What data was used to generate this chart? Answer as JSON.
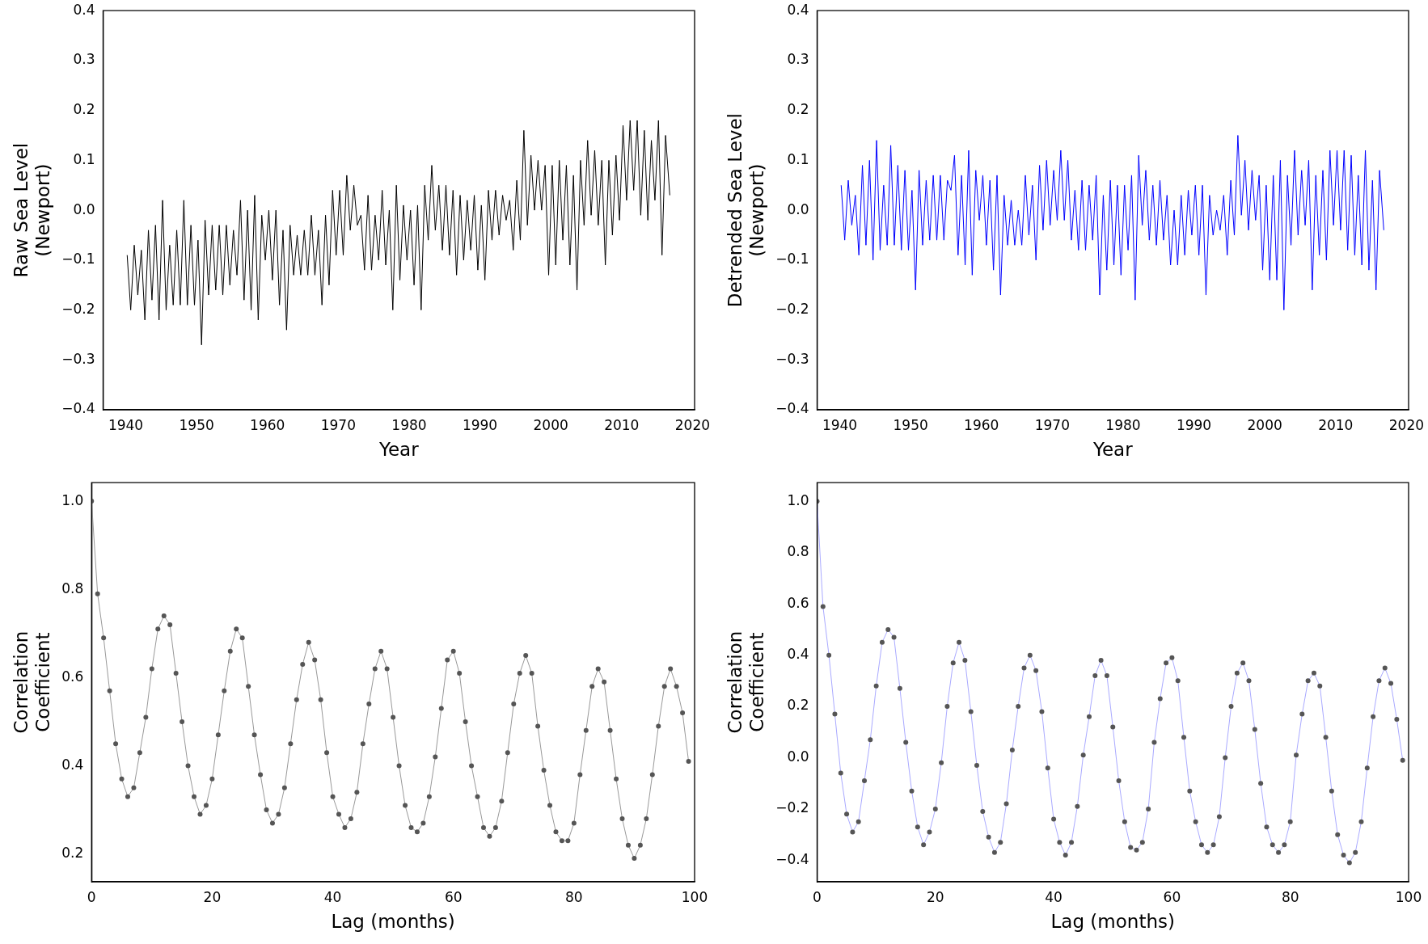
{
  "chart_data": [
    {
      "type": "line",
      "xlabel": "Year",
      "ylabel": "Raw Sea Level\n(Newport)",
      "color": "#000000",
      "marker": "none",
      "xlim": [
        1936.8,
        2020.3
      ],
      "xticks": [
        1940,
        1950,
        1960,
        1970,
        1980,
        1990,
        2000,
        2010,
        2020
      ],
      "ylim": [
        -0.4,
        0.4
      ],
      "yticks": [
        {
          "value": -0.4,
          "label": "−0.4"
        },
        {
          "value": -0.3,
          "label": "−0.3"
        },
        {
          "value": -0.2,
          "label": "−0.2"
        },
        {
          "value": -0.1,
          "label": "−0.1"
        },
        {
          "value": 0,
          "label": "0.0"
        },
        0.1,
        0.2,
        0.3,
        0.4
      ],
      "x": [
        1940.2,
        1940.7,
        1941.2,
        1941.7,
        1942.2,
        1942.7,
        1943.2,
        1943.7,
        1944.2,
        1944.7,
        1945.2,
        1945.7,
        1946.2,
        1946.7,
        1947.2,
        1947.7,
        1948.2,
        1948.7,
        1949.2,
        1949.7,
        1950.2,
        1950.7,
        1951.2,
        1951.7,
        1952.2,
        1952.7,
        1953.2,
        1953.7,
        1954.2,
        1954.7,
        1955.2,
        1955.7,
        1956.2,
        1956.7,
        1957.2,
        1957.7,
        1958.2,
        1958.7,
        1959.2,
        1959.7,
        1960.2,
        1960.7,
        1961.2,
        1961.7,
        1962.2,
        1962.7,
        1963.2,
        1963.7,
        1964.2,
        1964.7,
        1965.2,
        1965.7,
        1966.2,
        1966.7,
        1967.2,
        1967.7,
        1968.2,
        1968.7,
        1969.2,
        1969.7,
        1970.2,
        1970.7,
        1971.2,
        1971.7,
        1972.2,
        1972.7,
        1973.2,
        1973.7,
        1974.2,
        1974.7,
        1975.2,
        1975.7,
        1976.2,
        1976.7,
        1977.2,
        1977.7,
        1978.2,
        1978.7,
        1979.2,
        1979.7,
        1980.2,
        1980.7,
        1981.2,
        1981.7,
        1982.2,
        1982.7,
        1983.2,
        1983.7,
        1984.2,
        1984.7,
        1985.2,
        1985.7,
        1986.2,
        1986.7,
        1987.2,
        1987.7,
        1988.2,
        1988.7,
        1989.2,
        1989.7,
        1990.2,
        1990.7,
        1991.2,
        1991.7,
        1992.2,
        1992.7,
        1993.2,
        1993.7,
        1994.2,
        1994.7,
        1995.2,
        1995.7,
        1996.2,
        1996.7,
        1997.2,
        1997.7,
        1998.2,
        1998.7,
        1999.2,
        1999.7,
        2000.2,
        2000.7,
        2001.2,
        2001.7,
        2002.2,
        2002.7,
        2003.2,
        2003.7,
        2004.2,
        2004.7,
        2005.2,
        2005.7,
        2006.2,
        2006.7,
        2007.2,
        2007.7,
        2008.2,
        2008.7,
        2009.2,
        2009.7,
        2010.2,
        2010.7,
        2011.2,
        2011.7,
        2012.2,
        2012.7,
        2013.2,
        2013.7,
        2014.2,
        2014.7,
        2015.2,
        2015.7,
        2016.2,
        2016.8
      ],
      "values": [
        -0.09,
        -0.2,
        -0.07,
        -0.17,
        -0.08,
        -0.22,
        -0.04,
        -0.18,
        -0.03,
        -0.22,
        0.02,
        -0.2,
        -0.07,
        -0.19,
        -0.04,
        -0.19,
        0.02,
        -0.19,
        -0.03,
        -0.19,
        -0.06,
        -0.27,
        -0.02,
        -0.17,
        -0.03,
        -0.16,
        -0.03,
        -0.17,
        -0.03,
        -0.15,
        -0.04,
        -0.13,
        0.02,
        -0.18,
        0.0,
        -0.2,
        0.03,
        -0.22,
        -0.01,
        -0.1,
        0.0,
        -0.14,
        0.0,
        -0.19,
        -0.04,
        -0.24,
        -0.03,
        -0.13,
        -0.05,
        -0.13,
        -0.04,
        -0.13,
        -0.01,
        -0.13,
        -0.04,
        -0.19,
        -0.01,
        -0.15,
        0.04,
        -0.09,
        0.04,
        -0.09,
        0.07,
        -0.04,
        0.05,
        -0.03,
        -0.01,
        -0.12,
        0.03,
        -0.12,
        -0.01,
        -0.1,
        0.04,
        -0.11,
        0.0,
        -0.2,
        0.05,
        -0.14,
        0.01,
        -0.1,
        0.0,
        -0.15,
        0.01,
        -0.2,
        0.05,
        -0.06,
        0.09,
        -0.04,
        0.05,
        -0.08,
        0.05,
        -0.09,
        0.04,
        -0.13,
        0.03,
        -0.1,
        0.02,
        -0.08,
        0.03,
        -0.12,
        0.01,
        -0.14,
        0.04,
        -0.06,
        0.04,
        -0.05,
        0.03,
        -0.02,
        0.02,
        -0.08,
        0.06,
        -0.06,
        0.16,
        -0.03,
        0.11,
        0.0,
        0.1,
        0.0,
        0.09,
        -0.13,
        0.09,
        -0.11,
        0.1,
        -0.06,
        0.09,
        -0.11,
        0.07,
        -0.16,
        0.1,
        -0.03,
        0.14,
        -0.01,
        0.12,
        -0.03,
        0.1,
        -0.11,
        0.1,
        -0.05,
        0.11,
        -0.02,
        0.17,
        0.02,
        0.18,
        0.04,
        0.18,
        -0.01,
        0.16,
        -0.02,
        0.14,
        0.02,
        0.18,
        -0.09,
        0.15,
        0.03
      ]
    },
    {
      "type": "line",
      "xlabel": "Year",
      "ylabel": "Detrended Sea Level\n(Newport)",
      "color": "#0000ff",
      "marker": "none",
      "xlim": [
        1936.8,
        2020.3
      ],
      "xticks": [
        1940,
        1950,
        1960,
        1970,
        1980,
        1990,
        2000,
        2010,
        2020
      ],
      "ylim": [
        -0.4,
        0.4
      ],
      "yticks": [
        {
          "value": -0.4,
          "label": "−0.4"
        },
        {
          "value": -0.3,
          "label": "−0.3"
        },
        {
          "value": -0.2,
          "label": "−0.2"
        },
        {
          "value": -0.1,
          "label": "−0.1"
        },
        {
          "value": 0,
          "label": "0.0"
        },
        0.1,
        0.2,
        0.3,
        0.4
      ],
      "x": [
        1940.2,
        1940.7,
        1941.2,
        1941.7,
        1942.2,
        1942.7,
        1943.2,
        1943.7,
        1944.2,
        1944.7,
        1945.2,
        1945.7,
        1946.2,
        1946.7,
        1947.2,
        1947.7,
        1948.2,
        1948.7,
        1949.2,
        1949.7,
        1950.2,
        1950.7,
        1951.2,
        1951.7,
        1952.2,
        1952.7,
        1953.2,
        1953.7,
        1954.2,
        1954.7,
        1955.2,
        1955.7,
        1956.2,
        1956.7,
        1957.2,
        1957.7,
        1958.2,
        1958.7,
        1959.2,
        1959.7,
        1960.2,
        1960.7,
        1961.2,
        1961.7,
        1962.2,
        1962.7,
        1963.2,
        1963.7,
        1964.2,
        1964.7,
        1965.2,
        1965.7,
        1966.2,
        1966.7,
        1967.2,
        1967.7,
        1968.2,
        1968.7,
        1969.2,
        1969.7,
        1970.2,
        1970.7,
        1971.2,
        1971.7,
        1972.2,
        1972.7,
        1973.2,
        1973.7,
        1974.2,
        1974.7,
        1975.2,
        1975.7,
        1976.2,
        1976.7,
        1977.2,
        1977.7,
        1978.2,
        1978.7,
        1979.2,
        1979.7,
        1980.2,
        1980.7,
        1981.2,
        1981.7,
        1982.2,
        1982.7,
        1983.2,
        1983.7,
        1984.2,
        1984.7,
        1985.2,
        1985.7,
        1986.2,
        1986.7,
        1987.2,
        1987.7,
        1988.2,
        1988.7,
        1989.2,
        1989.7,
        1990.2,
        1990.7,
        1991.2,
        1991.7,
        1992.2,
        1992.7,
        1993.2,
        1993.7,
        1994.2,
        1994.7,
        1995.2,
        1995.7,
        1996.2,
        1996.7,
        1997.2,
        1997.7,
        1998.2,
        1998.7,
        1999.2,
        1999.7,
        2000.2,
        2000.7,
        2001.2,
        2001.7,
        2002.2,
        2002.7,
        2003.2,
        2003.7,
        2004.2,
        2004.7,
        2005.2,
        2005.7,
        2006.2,
        2006.7,
        2007.2,
        2007.7,
        2008.2,
        2008.7,
        2009.2,
        2009.7,
        2010.2,
        2010.7,
        2011.2,
        2011.7,
        2012.2,
        2012.7,
        2013.2,
        2013.7,
        2014.2,
        2014.7,
        2015.2,
        2015.7,
        2016.2,
        2016.8
      ],
      "values": [
        0.05,
        -0.06,
        0.06,
        -0.03,
        0.03,
        -0.09,
        0.09,
        -0.07,
        0.1,
        -0.1,
        0.14,
        -0.08,
        0.05,
        -0.07,
        0.13,
        -0.07,
        0.09,
        -0.08,
        0.08,
        -0.08,
        0.04,
        -0.16,
        0.08,
        -0.07,
        0.06,
        -0.06,
        0.07,
        -0.06,
        0.07,
        -0.06,
        0.06,
        0.04,
        0.11,
        -0.09,
        0.07,
        -0.11,
        0.12,
        -0.13,
        0.08,
        -0.02,
        0.07,
        -0.07,
        0.06,
        -0.12,
        0.07,
        -0.17,
        0.03,
        -0.07,
        0.02,
        -0.07,
        0.0,
        -0.07,
        0.07,
        -0.05,
        0.05,
        -0.1,
        0.09,
        -0.04,
        0.1,
        -0.03,
        0.08,
        -0.02,
        0.12,
        -0.02,
        0.1,
        -0.06,
        0.04,
        -0.08,
        0.06,
        -0.08,
        0.05,
        -0.06,
        0.07,
        -0.17,
        0.03,
        -0.12,
        0.06,
        -0.11,
        0.05,
        -0.13,
        0.05,
        -0.08,
        0.07,
        -0.18,
        0.11,
        -0.03,
        0.08,
        -0.06,
        0.05,
        -0.07,
        0.06,
        -0.06,
        0.03,
        -0.11,
        0.0,
        -0.11,
        0.03,
        -0.09,
        0.04,
        -0.05,
        0.05,
        -0.09,
        0.05,
        -0.17,
        0.03,
        -0.05,
        0.0,
        -0.04,
        0.03,
        -0.09,
        0.06,
        -0.05,
        0.15,
        -0.01,
        0.1,
        -0.04,
        0.08,
        -0.02,
        0.07,
        -0.12,
        0.05,
        -0.14,
        0.07,
        -0.14,
        0.1,
        -0.2,
        0.07,
        -0.07,
        0.12,
        -0.05,
        0.08,
        -0.03,
        0.1,
        -0.16,
        0.07,
        -0.09,
        0.08,
        -0.1,
        0.12,
        -0.03,
        0.12,
        -0.04,
        0.12,
        -0.08,
        0.11,
        -0.09,
        0.07,
        -0.11,
        0.12,
        -0.12,
        0.06,
        -0.16,
        0.08,
        -0.04
      ]
    },
    {
      "type": "line",
      "xlabel": "Lag (months)",
      "ylabel": "Correlation\nCoefficient",
      "color": "#999999",
      "marker": "circle",
      "xlim": [
        0,
        100
      ],
      "xticks": [
        0,
        20,
        40,
        60,
        80,
        100
      ],
      "ylim": [
        0.137,
        1.042
      ],
      "yticks": [
        0.2,
        0.4,
        0.6,
        0.8,
        {
          "value": 1,
          "label": "1.0"
        }
      ],
      "x": [
        0,
        1,
        2,
        3,
        4,
        5,
        6,
        7,
        8,
        9,
        10,
        11,
        12,
        13,
        14,
        15,
        16,
        17,
        18,
        19,
        20,
        21,
        22,
        23,
        24,
        25,
        26,
        27,
        28,
        29,
        30,
        31,
        32,
        33,
        34,
        35,
        36,
        37,
        38,
        39,
        40,
        41,
        42,
        43,
        44,
        45,
        46,
        47,
        48,
        49,
        50,
        51,
        52,
        53,
        54,
        55,
        56,
        57,
        58,
        59,
        60,
        61,
        62,
        63,
        64,
        65,
        66,
        67,
        68,
        69,
        70,
        71,
        72,
        73,
        74,
        75,
        76,
        77,
        78,
        79,
        80,
        81,
        82,
        83,
        84,
        85,
        86,
        87,
        88,
        89,
        90,
        91,
        92,
        93,
        94,
        95,
        96,
        97,
        98,
        99
      ],
      "values": [
        1.0,
        0.79,
        0.69,
        0.57,
        0.45,
        0.37,
        0.33,
        0.35,
        0.43,
        0.51,
        0.62,
        0.71,
        0.74,
        0.72,
        0.61,
        0.5,
        0.4,
        0.33,
        0.29,
        0.31,
        0.37,
        0.47,
        0.57,
        0.66,
        0.71,
        0.69,
        0.58,
        0.47,
        0.38,
        0.3,
        0.27,
        0.29,
        0.35,
        0.45,
        0.55,
        0.63,
        0.68,
        0.64,
        0.55,
        0.43,
        0.33,
        0.29,
        0.26,
        0.28,
        0.34,
        0.45,
        0.54,
        0.62,
        0.66,
        0.62,
        0.51,
        0.4,
        0.31,
        0.26,
        0.25,
        0.27,
        0.33,
        0.42,
        0.53,
        0.64,
        0.66,
        0.61,
        0.5,
        0.4,
        0.33,
        0.26,
        0.24,
        0.26,
        0.32,
        0.43,
        0.54,
        0.61,
        0.65,
        0.61,
        0.49,
        0.39,
        0.31,
        0.25,
        0.23,
        0.23,
        0.27,
        0.38,
        0.48,
        0.58,
        0.62,
        0.59,
        0.48,
        0.37,
        0.28,
        0.22,
        0.19,
        0.22,
        0.28,
        0.38,
        0.49,
        0.58,
        0.62,
        0.58,
        0.52,
        0.41
      ]
    },
    {
      "type": "line",
      "xlabel": "Lag (months)",
      "ylabel": "Correlation\nCoefficient",
      "color": "#aaaaff",
      "marker": "circle",
      "xlim": [
        0,
        100
      ],
      "xticks": [
        0,
        20,
        40,
        60,
        80,
        100
      ],
      "ylim": [
        -0.484,
        1.073
      ],
      "yticks": [
        {
          "value": -0.4,
          "label": "−0.4"
        },
        {
          "value": -0.2,
          "label": "−0.2"
        },
        {
          "value": 0,
          "label": "0.0"
        },
        0.2,
        0.4,
        0.6,
        0.8,
        {
          "value": 1,
          "label": "1.0"
        }
      ],
      "x": [
        0,
        1,
        2,
        3,
        4,
        5,
        6,
        7,
        8,
        9,
        10,
        11,
        12,
        13,
        14,
        15,
        16,
        17,
        18,
        19,
        20,
        21,
        22,
        23,
        24,
        25,
        26,
        27,
        28,
        29,
        30,
        31,
        32,
        33,
        34,
        35,
        36,
        37,
        38,
        39,
        40,
        41,
        42,
        43,
        44,
        45,
        46,
        47,
        48,
        49,
        50,
        51,
        52,
        53,
        54,
        55,
        56,
        57,
        58,
        59,
        60,
        61,
        62,
        63,
        64,
        65,
        66,
        67,
        68,
        69,
        70,
        71,
        72,
        73,
        74,
        75,
        76,
        77,
        78,
        79,
        80,
        81,
        82,
        83,
        84,
        85,
        86,
        87,
        88,
        89,
        90,
        91,
        92,
        93,
        94,
        95,
        96,
        97,
        98,
        99
      ],
      "values": [
        1.0,
        0.59,
        0.4,
        0.17,
        -0.06,
        -0.22,
        -0.29,
        -0.25,
        -0.09,
        0.07,
        0.28,
        0.45,
        0.5,
        0.47,
        0.27,
        0.06,
        -0.13,
        -0.27,
        -0.34,
        -0.29,
        -0.2,
        -0.02,
        0.2,
        0.37,
        0.45,
        0.38,
        0.18,
        -0.03,
        -0.21,
        -0.31,
        -0.37,
        -0.33,
        -0.18,
        0.03,
        0.2,
        0.35,
        0.4,
        0.34,
        0.18,
        -0.04,
        -0.24,
        -0.33,
        -0.38,
        -0.33,
        -0.19,
        0.01,
        0.16,
        0.32,
        0.38,
        0.32,
        0.12,
        -0.09,
        -0.25,
        -0.35,
        -0.36,
        -0.33,
        -0.2,
        0.06,
        0.23,
        0.37,
        0.39,
        0.3,
        0.08,
        -0.13,
        -0.25,
        -0.34,
        -0.37,
        -0.34,
        -0.23,
        0.0,
        0.2,
        0.33,
        0.37,
        0.3,
        0.11,
        -0.1,
        -0.27,
        -0.34,
        -0.37,
        -0.34,
        -0.25,
        0.01,
        0.17,
        0.3,
        0.33,
        0.28,
        0.08,
        -0.13,
        -0.3,
        -0.38,
        -0.41,
        -0.37,
        -0.25,
        -0.04,
        0.16,
        0.3,
        0.35,
        0.29,
        0.15,
        -0.01
      ]
    }
  ]
}
